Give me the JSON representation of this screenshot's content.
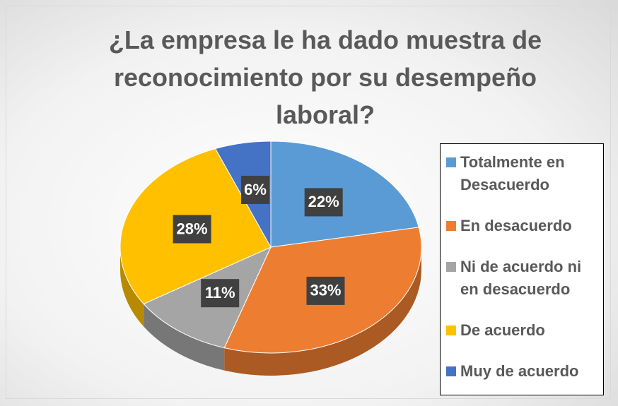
{
  "chart_data": {
    "type": "pie",
    "title": "¿La empresa le ha dado muestra de reconocimiento por su desempeño laboral?",
    "categories": [
      "Totalmente en Desacuerdo",
      "En desacuerdo",
      "Ni de acuerdo ni en desacuerdo",
      "De acuerdo",
      "Muy de acuerdo"
    ],
    "values": [
      22,
      33,
      11,
      28,
      6
    ],
    "value_labels": [
      "22%",
      "33%",
      "11%",
      "28%",
      "6%"
    ],
    "colors": [
      "#5b9bd5",
      "#ed7d31",
      "#a5a5a5",
      "#ffc000",
      "#4472c4"
    ],
    "legend": "right"
  }
}
